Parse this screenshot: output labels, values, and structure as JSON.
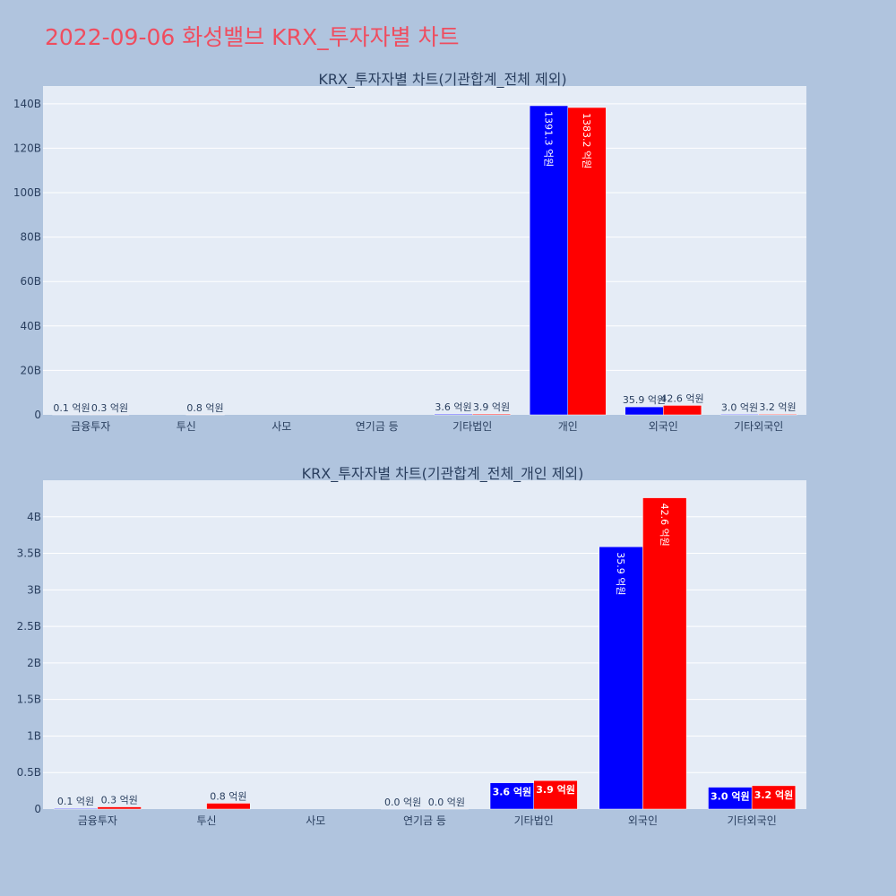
{
  "title": "2022-09-06 화성밸브 KRX_투자자별 차트",
  "colors": {
    "buy": "#0000ff",
    "sell": "#ff0000",
    "plot_bg": "#e5ecf6",
    "page_bg": "#b0c4de",
    "title": "#ef4d5f"
  },
  "chart_data": [
    {
      "type": "bar",
      "title": "KRX_투자자별 차트(기관합계_전체 제외)",
      "categories": [
        "금융투자",
        "투신",
        "사모",
        "연기금 등",
        "기타법인",
        "개인",
        "외국인",
        "기타외국인"
      ],
      "ylim": [
        0,
        148
      ],
      "y_ticks": [
        0,
        20,
        40,
        60,
        80,
        100,
        120,
        140
      ],
      "y_tick_labels": [
        "0",
        "20B",
        "40B",
        "60B",
        "80B",
        "100B",
        "120B",
        "140B"
      ],
      "grid": true,
      "series": [
        {
          "color": "#0000ff",
          "values": [
            0.01,
            0,
            0,
            0,
            0.36,
            139.13,
            3.59,
            0.3
          ],
          "labels": [
            "0.1 억원",
            "",
            "",
            "",
            "3.6 억원",
            "1391.3 억원",
            "35.9 억원",
            "3.0 억원"
          ]
        },
        {
          "color": "#ff0000",
          "values": [
            0.03,
            0.08,
            0,
            0,
            0.39,
            138.32,
            4.26,
            0.32
          ],
          "labels": [
            "0.3 억원",
            "0.8 억원",
            "",
            "",
            "3.9 억원",
            "1383.2 억원",
            "42.6 억원",
            "3.2 억원"
          ]
        }
      ]
    },
    {
      "type": "bar",
      "title": "KRX_투자자별 차트(기관합계_전체_개인 제외)",
      "categories": [
        "금융투자",
        "투신",
        "사모",
        "연기금 등",
        "기타법인",
        "외국인",
        "기타외국인"
      ],
      "ylim": [
        0,
        4.5
      ],
      "y_ticks": [
        0,
        0.5,
        1,
        1.5,
        2,
        2.5,
        3,
        3.5,
        4
      ],
      "y_tick_labels": [
        "0",
        "0.5B",
        "1B",
        "1.5B",
        "2B",
        "2.5B",
        "3B",
        "3.5B",
        "4B"
      ],
      "grid": true,
      "series": [
        {
          "color": "#0000ff",
          "values": [
            0.01,
            0,
            0,
            0.001,
            0.36,
            3.59,
            0.3
          ],
          "labels": [
            "0.1 억원",
            "",
            "",
            "0.0 억원",
            "3.6 억원",
            "35.9 억원",
            "3.0 억원"
          ]
        },
        {
          "color": "#ff0000",
          "values": [
            0.03,
            0.08,
            0,
            0.001,
            0.39,
            4.26,
            0.32
          ],
          "labels": [
            "0.3 억원",
            "0.8 억원",
            "",
            "0.0 억원",
            "3.9 억원",
            "42.6 억원",
            "3.2 억원"
          ]
        }
      ]
    }
  ]
}
